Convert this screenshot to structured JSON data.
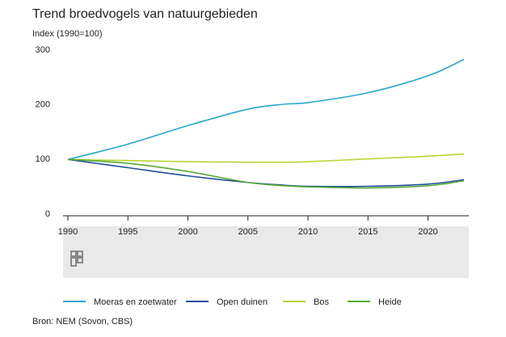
{
  "chart_data": {
    "type": "line",
    "title": "Trend broedvogels van natuurgebieden",
    "y_label": "Index (1990=100)",
    "source": "Bron: NEM (Sovon, CBS)",
    "x": [
      1990,
      1995,
      2000,
      2005,
      2008,
      2010,
      2015,
      2020,
      2023
    ],
    "series": [
      {
        "name": "Moeras en zoetwater",
        "color": "#2aa7c8",
        "values": [
          100,
          128,
          162,
          192,
          201,
          204,
          222,
          253,
          283
        ]
      },
      {
        "name": "Open duinen",
        "color": "#1f4e9c",
        "values": [
          100,
          85,
          70,
          58,
          53,
          51,
          51,
          55,
          63
        ]
      },
      {
        "name": "Bos",
        "color": "#b9d432",
        "values": [
          100,
          98,
          96,
          95,
          95,
          96,
          101,
          106,
          110
        ]
      },
      {
        "name": "Heide",
        "color": "#58a836",
        "values": [
          100,
          93,
          78,
          58,
          52,
          50,
          48,
          52,
          61
        ]
      }
    ],
    "xlim": [
      1990,
      2023
    ],
    "xticks": [
      1990,
      1995,
      2000,
      2005,
      2010,
      2015,
      2020
    ],
    "ylim": [
      0,
      300
    ],
    "yticks": [
      0,
      100,
      200,
      300
    ]
  }
}
